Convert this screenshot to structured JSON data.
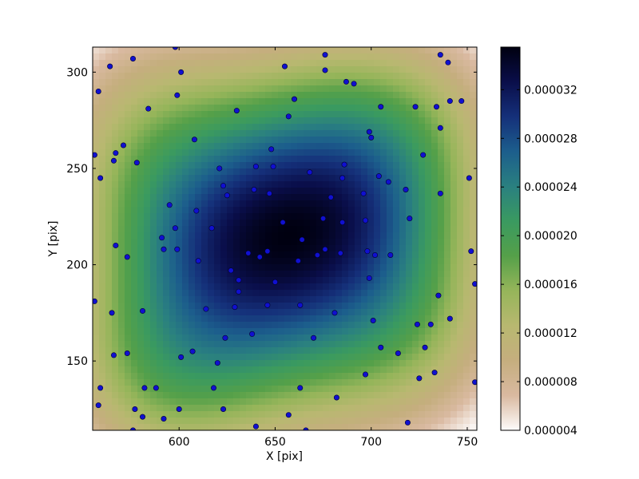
{
  "chart_data": {
    "type": "scatter",
    "title": "",
    "xlabel": "X [pix]",
    "ylabel": "Y [pix]",
    "xlim": [
      555,
      755
    ],
    "ylim": [
      114,
      313
    ],
    "grid": false,
    "x_ticks": [
      600,
      650,
      700,
      750
    ],
    "x_tick_labels": [
      "600",
      "650",
      "700",
      "750"
    ],
    "y_ticks": [
      150,
      200,
      250,
      300
    ],
    "y_tick_labels": [
      "150",
      "200",
      "250",
      "300"
    ],
    "background_map": {
      "description_kind": "smooth density map",
      "peak": [
        660,
        212
      ],
      "min_value": 4e-06,
      "max_value": 3.55e-05
    },
    "colorbar": {
      "range": [
        4e-06,
        3.55e-05
      ],
      "ticks": [
        4e-06,
        8e-06,
        1.2e-05,
        1.6e-05,
        2e-05,
        2.4e-05,
        2.8e-05,
        3.2e-05
      ],
      "tick_labels": [
        "0.000004",
        "0.000008",
        "0.000012",
        "0.000016",
        "0.000020",
        "0.000024",
        "0.000028",
        "0.000032"
      ],
      "colormap": "gist_earth_r",
      "stops": [
        "#fdfbfb",
        "#d9b9a0",
        "#c5ae7e",
        "#b8b870",
        "#96b55a",
        "#55a049",
        "#3a9a60",
        "#2a8080",
        "#1c5e8c",
        "#15307a",
        "#0a0e4a",
        "#000010"
      ]
    },
    "marker_color": "#1010d0",
    "points": [
      [
        556,
        257
      ],
      [
        558,
        290
      ],
      [
        559,
        245
      ],
      [
        556,
        181
      ],
      [
        559,
        136
      ],
      [
        558,
        127
      ],
      [
        564,
        303
      ],
      [
        566,
        254
      ],
      [
        567,
        258
      ],
      [
        567,
        210
      ],
      [
        565,
        175
      ],
      [
        566,
        153
      ],
      [
        571,
        262
      ],
      [
        573,
        154
      ],
      [
        573,
        204
      ],
      [
        576,
        307
      ],
      [
        577,
        125
      ],
      [
        576,
        114
      ],
      [
        578,
        253
      ],
      [
        581,
        176
      ],
      [
        582,
        136
      ],
      [
        581,
        121
      ],
      [
        584,
        281
      ],
      [
        588,
        136
      ],
      [
        591,
        214
      ],
      [
        592,
        208
      ],
      [
        592,
        120
      ],
      [
        595,
        231
      ],
      [
        598,
        313
      ],
      [
        598,
        219
      ],
      [
        599,
        288
      ],
      [
        599,
        208
      ],
      [
        600,
        125
      ],
      [
        601,
        300
      ],
      [
        601,
        152
      ],
      [
        607,
        155
      ],
      [
        608,
        265
      ],
      [
        609,
        228
      ],
      [
        610,
        202
      ],
      [
        614,
        177
      ],
      [
        617,
        219
      ],
      [
        618,
        136
      ],
      [
        620,
        149
      ],
      [
        621,
        250
      ],
      [
        623,
        241
      ],
      [
        623,
        125
      ],
      [
        624,
        162
      ],
      [
        625,
        236
      ],
      [
        627,
        197
      ],
      [
        629,
        178
      ],
      [
        630,
        280
      ],
      [
        631,
        186
      ],
      [
        631,
        192
      ],
      [
        636,
        206
      ],
      [
        638,
        164
      ],
      [
        639,
        239
      ],
      [
        640,
        251
      ],
      [
        642,
        204
      ],
      [
        646,
        207
      ],
      [
        646,
        179
      ],
      [
        647,
        237
      ],
      [
        648,
        260
      ],
      [
        649,
        251
      ],
      [
        650,
        191
      ],
      [
        640,
        116
      ],
      [
        654,
        222
      ],
      [
        655,
        303
      ],
      [
        657,
        277
      ],
      [
        657,
        122
      ],
      [
        660,
        286
      ],
      [
        662,
        202
      ],
      [
        663,
        179
      ],
      [
        663,
        136
      ],
      [
        664,
        213
      ],
      [
        666,
        114
      ],
      [
        668,
        248
      ],
      [
        670,
        162
      ],
      [
        672,
        205
      ],
      [
        675,
        224
      ],
      [
        676,
        208
      ],
      [
        676,
        301
      ],
      [
        676,
        309
      ],
      [
        679,
        235
      ],
      [
        681,
        175
      ],
      [
        682,
        131
      ],
      [
        684,
        206
      ],
      [
        685,
        222
      ],
      [
        685,
        245
      ],
      [
        686,
        252
      ],
      [
        687,
        295
      ],
      [
        691,
        294
      ],
      [
        696,
        237
      ],
      [
        697,
        143
      ],
      [
        697,
        223
      ],
      [
        698,
        207
      ],
      [
        699,
        193
      ],
      [
        699,
        269
      ],
      [
        700,
        266
      ],
      [
        701,
        171
      ],
      [
        702,
        205
      ],
      [
        704,
        246
      ],
      [
        705,
        282
      ],
      [
        705,
        157
      ],
      [
        709,
        243
      ],
      [
        710,
        205
      ],
      [
        714,
        154
      ],
      [
        718,
        239
      ],
      [
        719,
        118
      ],
      [
        720,
        224
      ],
      [
        723,
        282
      ],
      [
        724,
        169
      ],
      [
        725,
        141
      ],
      [
        727,
        257
      ],
      [
        728,
        157
      ],
      [
        731,
        169
      ],
      [
        733,
        144
      ],
      [
        734,
        282
      ],
      [
        735,
        184
      ],
      [
        736,
        271
      ],
      [
        736,
        237
      ],
      [
        736,
        309
      ],
      [
        740,
        305
      ],
      [
        741,
        285
      ],
      [
        741,
        172
      ],
      [
        747,
        285
      ],
      [
        751,
        245
      ],
      [
        752,
        207
      ],
      [
        754,
        190
      ],
      [
        754,
        139
      ]
    ]
  }
}
